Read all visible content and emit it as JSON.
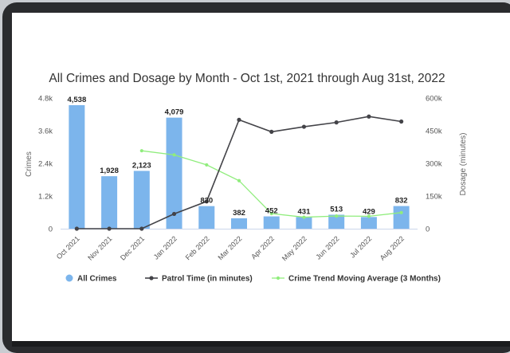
{
  "chart_data": {
    "type": "bar",
    "title": "All Crimes and Dosage by Month - Oct 1st, 2021 through Aug 31st, 2022",
    "categories": [
      "Oct 2021",
      "Nov 2021",
      "Dec 2021",
      "Jan 2022",
      "Feb 2022",
      "Mar 2022",
      "Apr 2022",
      "May 2022",
      "Jun 2022",
      "Jul 2022",
      "Aug 2022"
    ],
    "ylabel": "Crimes",
    "ylabel_right": "Dosage (minutes)",
    "ylim": [
      0,
      4800
    ],
    "ylim_right": [
      0,
      600000
    ],
    "yticks": [
      "0",
      "1.2k",
      "2.4k",
      "3.6k",
      "4.8k"
    ],
    "yticks_right": [
      "0",
      "150k",
      "300k",
      "450k",
      "600k"
    ],
    "grid": false,
    "legend_position": "bottom",
    "series": [
      {
        "name": "All Crimes",
        "type": "bar",
        "axis": "left",
        "color": "#7cb5ec",
        "values": [
          4538,
          1928,
          2123,
          4079,
          830,
          382,
          452,
          431,
          513,
          429,
          832
        ],
        "labels": [
          "4,538",
          "1,928",
          "2,123",
          "4,079",
          "830",
          "382",
          "452",
          "431",
          "513",
          "429",
          "832"
        ]
      },
      {
        "name": "Patrol Time (in minutes)",
        "type": "line",
        "axis": "right",
        "color": "#434348",
        "values": [
          0,
          0,
          0,
          68000,
          125000,
          500000,
          445000,
          468000,
          488000,
          515000,
          492000
        ]
      },
      {
        "name": "Crime Trend Moving Average (3 Months)",
        "type": "line",
        "axis": "left",
        "color": "#90ed7d",
        "values": [
          null,
          null,
          2863,
          2710,
          2344,
          1764,
          555,
          422,
          465,
          458,
          591
        ]
      }
    ]
  }
}
